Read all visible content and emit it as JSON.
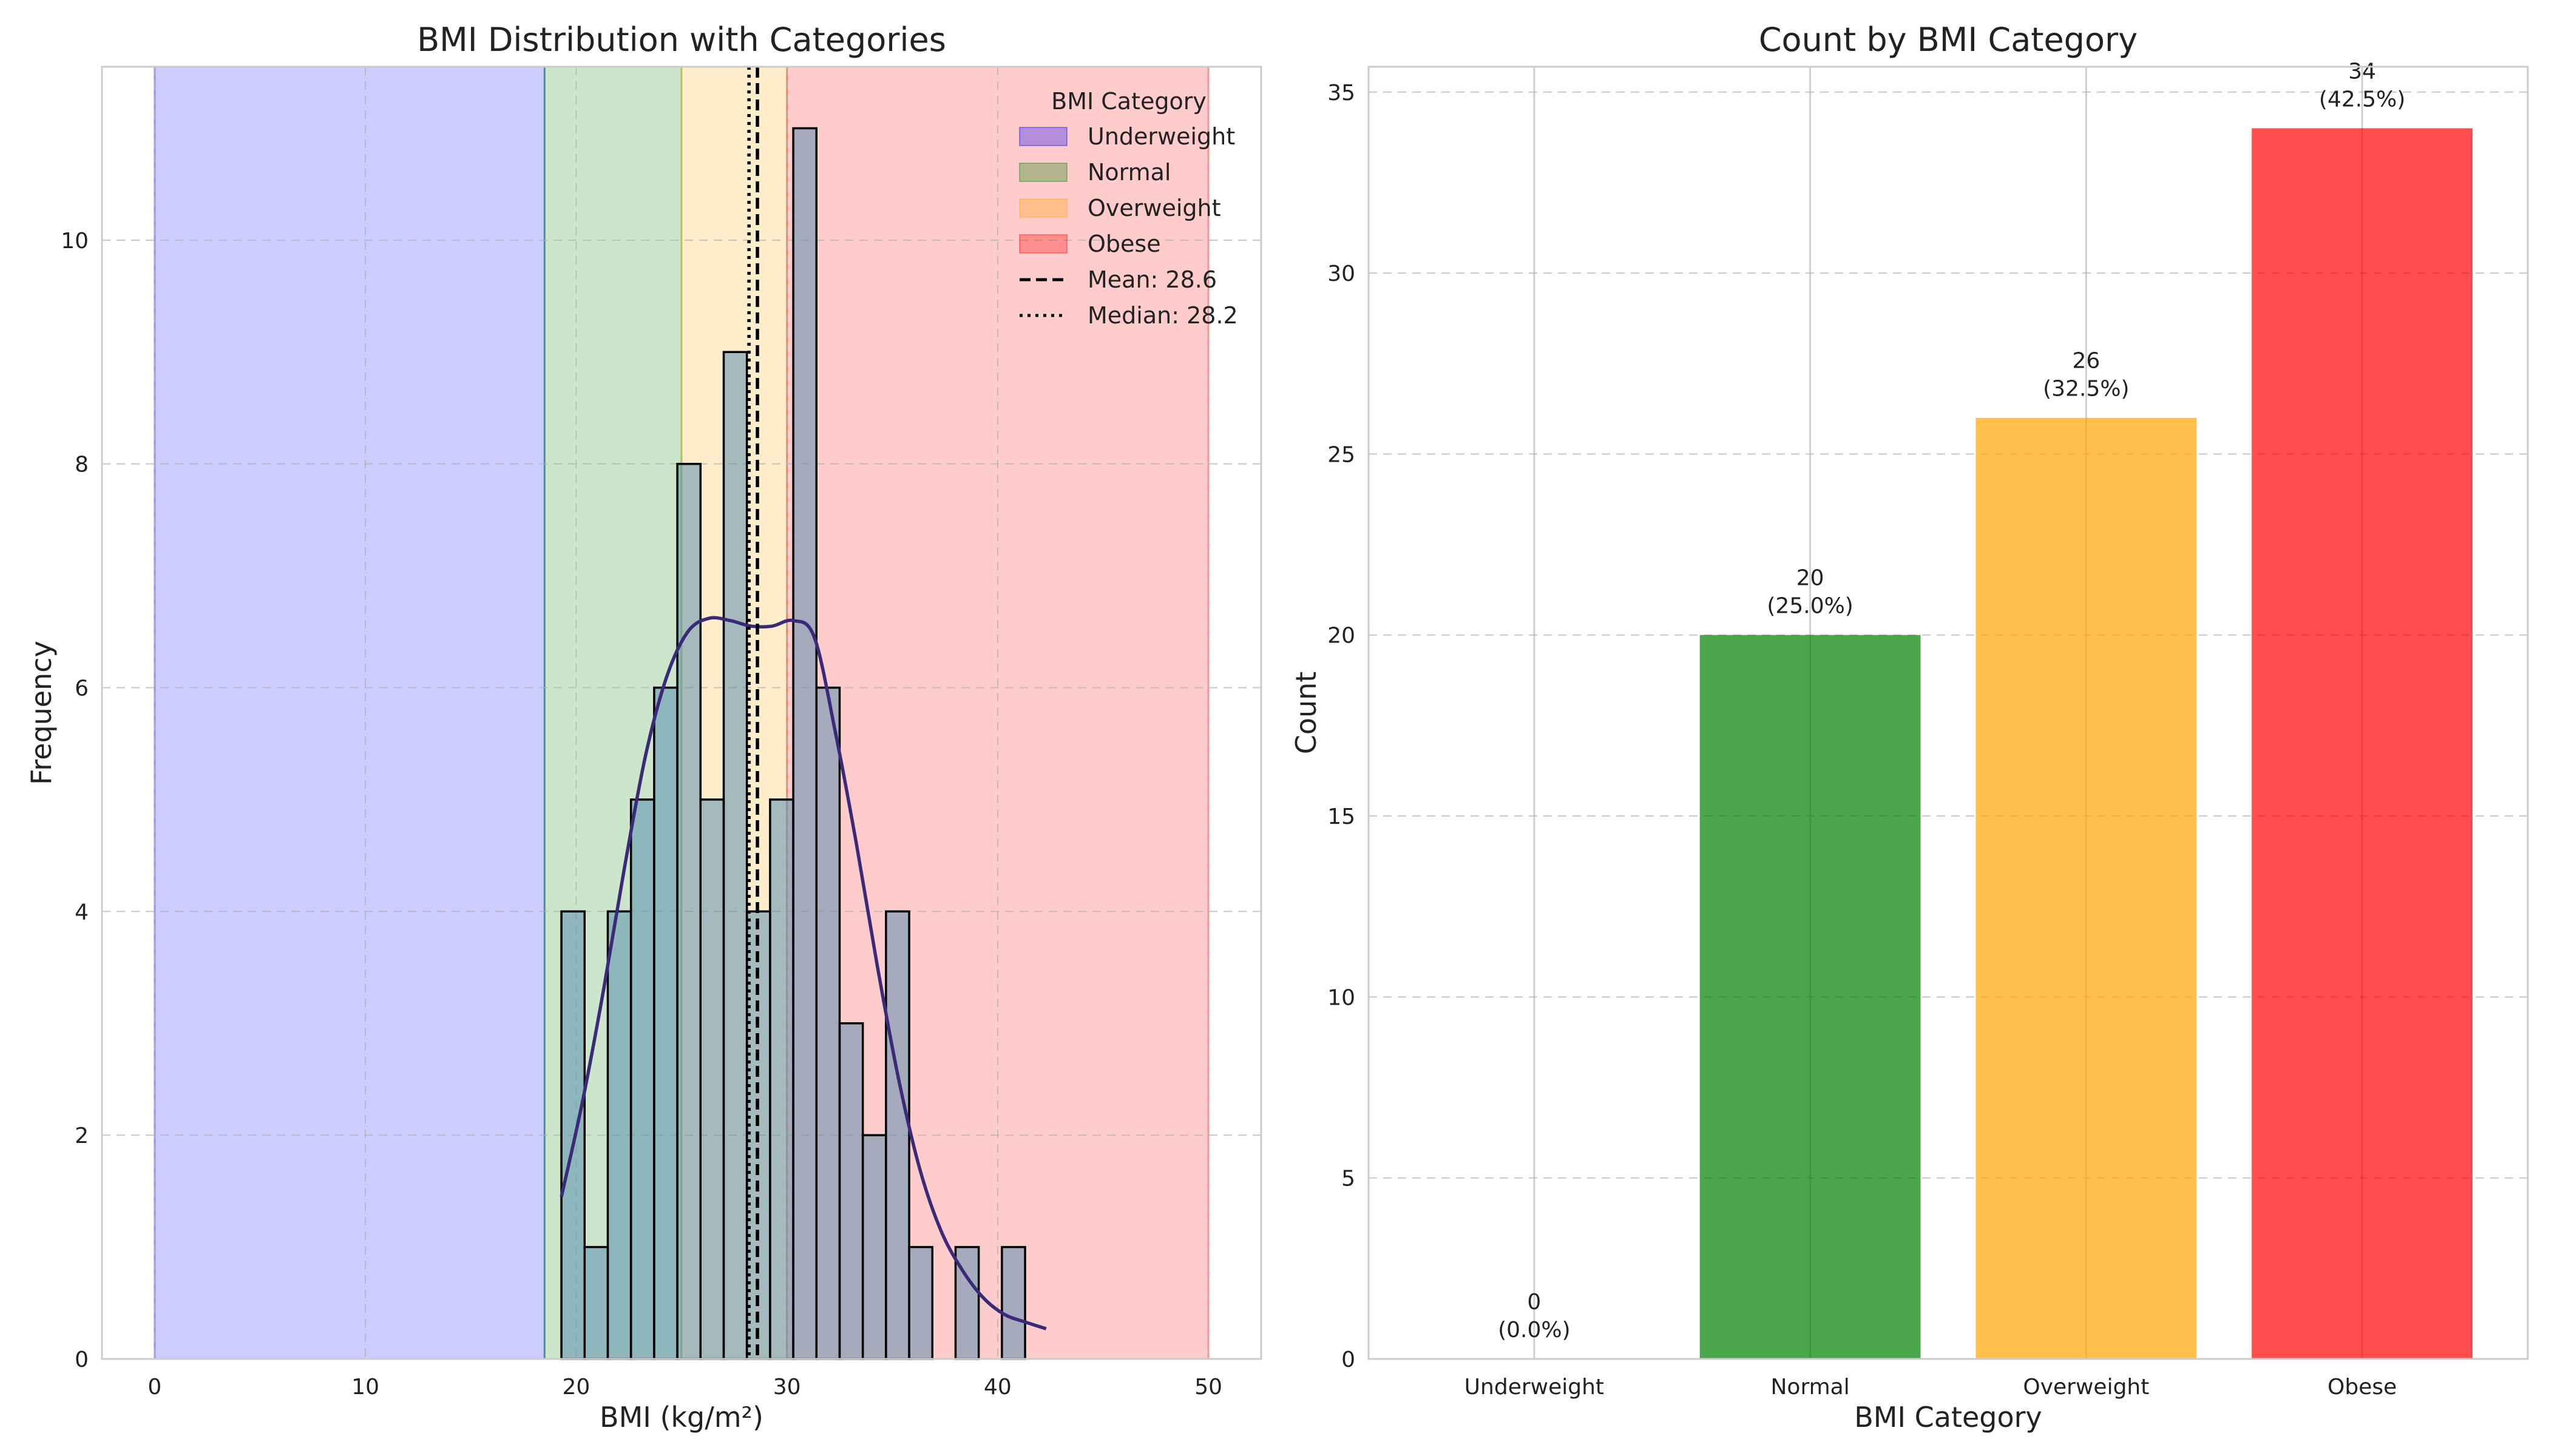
{
  "chart_data": [
    {
      "type": "bar",
      "title": "BMI Distribution with Categories",
      "xlabel": "BMI (kg/m²)",
      "ylabel": "Frequency",
      "xlim": [
        -2.5,
        52.5
      ],
      "ylim": [
        0,
        11.55
      ],
      "xticks": [
        "0",
        "10",
        "20",
        "30",
        "40",
        "50"
      ],
      "xtick_values": [
        0,
        10,
        20,
        30,
        40,
        50
      ],
      "yticks": [
        "0",
        "2",
        "4",
        "6",
        "8",
        "10"
      ],
      "ytick_values": [
        0,
        2,
        4,
        6,
        8,
        10
      ],
      "grid": true,
      "legend_title": "BMI Category",
      "legend_position": "top-right",
      "bands": [
        {
          "name": "Underweight",
          "from": 0,
          "to": 18.5,
          "color": "#0000ff"
        },
        {
          "name": "Normal",
          "from": 18.5,
          "to": 25,
          "color": "#008000"
        },
        {
          "name": "Overweight",
          "from": 25,
          "to": 30,
          "color": "#ffa500"
        },
        {
          "name": "Obese",
          "from": 30,
          "to": 50,
          "color": "#ff0000"
        }
      ],
      "histogram": {
        "bin_edges": [
          19.3,
          20.4,
          21.5,
          22.6,
          23.7,
          24.8,
          25.9,
          27.0,
          28.1,
          29.2,
          30.3,
          31.4,
          32.5,
          33.6,
          34.7,
          35.8,
          36.9,
          38.0,
          39.1,
          40.2,
          41.3,
          42.4
        ],
        "counts": [
          4,
          1,
          4,
          5,
          6,
          8,
          5,
          9,
          4,
          5,
          11,
          6,
          3,
          2,
          4,
          1,
          0,
          1,
          0,
          1,
          0
        ],
        "color": "#5b8fb0"
      },
      "kde": {
        "x": [
          19.3,
          20.3,
          21.3,
          22.3,
          23.3,
          24.3,
          25.3,
          26.3,
          27.3,
          28.3,
          29.3,
          30.3,
          31.3,
          32.3,
          33.3,
          34.3,
          35.3,
          36.3,
          37.3,
          38.3,
          39.3,
          40.3,
          41.3,
          42.3
        ],
        "y": [
          1.45,
          2.3,
          3.3,
          4.4,
          5.4,
          6.1,
          6.5,
          6.62,
          6.6,
          6.55,
          6.55,
          6.6,
          6.45,
          5.6,
          4.6,
          3.5,
          2.5,
          1.7,
          1.15,
          0.8,
          0.55,
          0.4,
          0.33,
          0.27
        ],
        "color": "#3b2a78"
      },
      "lines": [
        {
          "label": "Mean: 28.6",
          "x": 28.6,
          "style": "dashed"
        },
        {
          "label": "Median: 28.2",
          "x": 28.2,
          "style": "dotted"
        }
      ]
    },
    {
      "type": "bar",
      "title": "Count by BMI Category",
      "xlabel": "BMI Category",
      "ylabel": "Count",
      "ylim": [
        0,
        35.7
      ],
      "yticks": [
        "0",
        "5",
        "10",
        "15",
        "20",
        "25",
        "30",
        "35"
      ],
      "ytick_values": [
        0,
        5,
        10,
        15,
        20,
        25,
        30,
        35
      ],
      "grid": true,
      "categories": [
        "Underweight",
        "Normal",
        "Overweight",
        "Obese"
      ],
      "values": [
        0,
        20,
        26,
        34
      ],
      "percent_labels": [
        "(0.0%)",
        "(25.0%)",
        "(32.5%)",
        "(42.5%)"
      ],
      "count_labels": [
        "0",
        "20",
        "26",
        "34"
      ],
      "colors": [
        "#0000ff",
        "#008000",
        "#ffa500",
        "#ff0000"
      ]
    }
  ]
}
